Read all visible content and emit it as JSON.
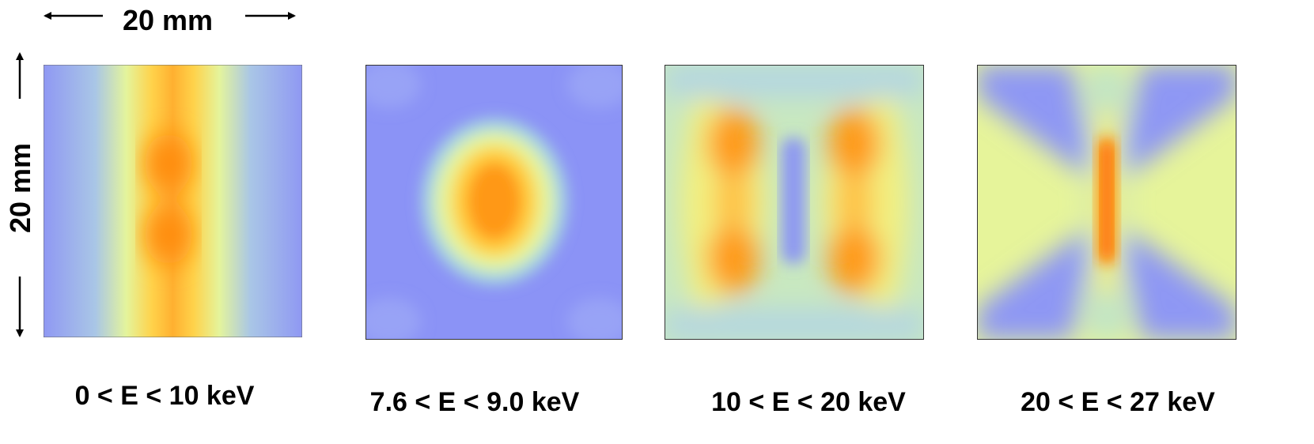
{
  "scale": {
    "horizontal": "20 mm",
    "vertical": "20 mm"
  },
  "panels": [
    {
      "label": "0 < E < 10 keV"
    },
    {
      "label": "7.6 < E < 9.0 keV"
    },
    {
      "label": "10 < E < 20 keV"
    },
    {
      "label": "20 < E < 27 keV"
    }
  ]
}
